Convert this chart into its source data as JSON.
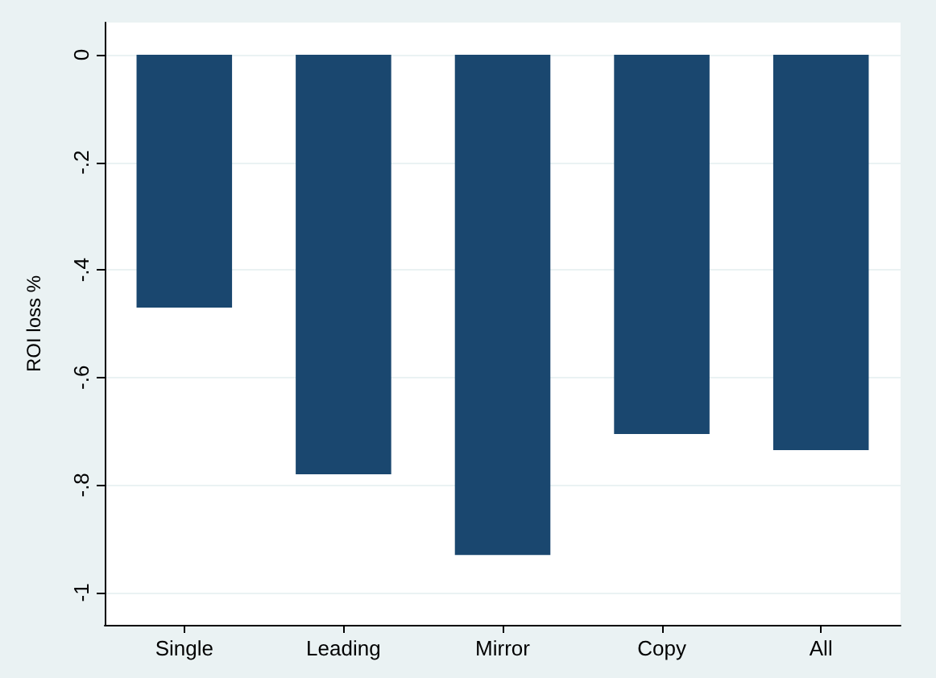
{
  "chart_data": {
    "type": "bar",
    "ylabel": "ROI loss %",
    "categories": [
      "Single",
      "Leading",
      "Mirror",
      "Copy",
      "All"
    ],
    "values": [
      -0.47,
      -0.78,
      -0.93,
      -0.705,
      -0.735
    ],
    "color": "#1a476f",
    "ylim": [
      -1.06,
      0.06
    ],
    "yticks": [
      {
        "value": -1,
        "label": "-1"
      },
      {
        "value": -0.8,
        "label": "-.8"
      },
      {
        "value": -0.6,
        "label": "-.6"
      },
      {
        "value": -0.4,
        "label": "-.4"
      },
      {
        "value": -0.2,
        "label": "-.2"
      },
      0
    ],
    "grid": "y"
  }
}
